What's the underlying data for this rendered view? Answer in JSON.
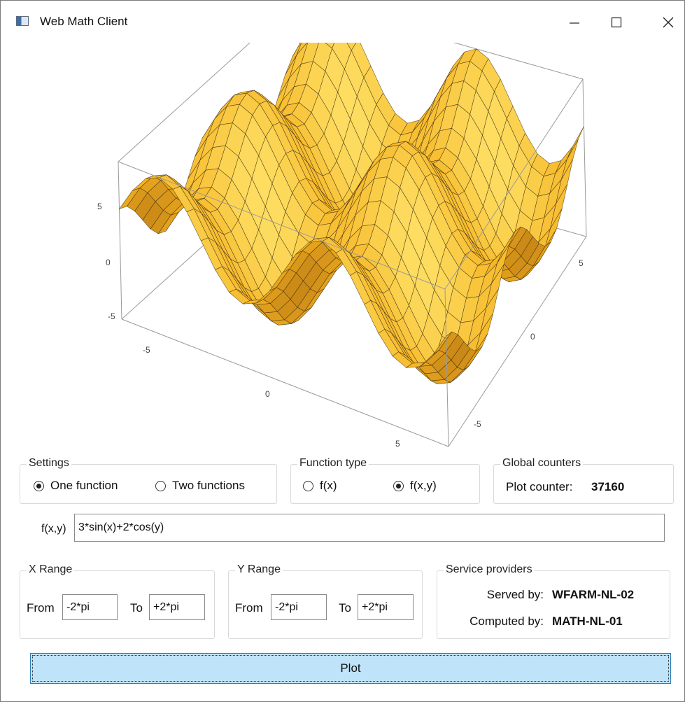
{
  "window": {
    "title": "Web Math Client"
  },
  "plot": {
    "z_ticks": [
      "5",
      "0",
      "-5"
    ],
    "x_ticks": [
      "-5",
      "0",
      "5"
    ],
    "y_ticks": [
      "-5",
      "0",
      "5"
    ]
  },
  "settings": {
    "title": "Settings",
    "option_one": "One function",
    "option_two": "Two functions",
    "selected": "one"
  },
  "function_type": {
    "title": "Function type",
    "option_fx": "f(x)",
    "option_fxy": "f(x,y)",
    "selected": "fxy"
  },
  "global_counters": {
    "title": "Global counters",
    "plot_counter_label": "Plot counter:",
    "plot_counter_value": "37160"
  },
  "function_input": {
    "label": "f(x,y)",
    "value": "3*sin(x)+2*cos(y)"
  },
  "x_range": {
    "title": "X Range",
    "from_label": "From",
    "from_value": "-2*pi",
    "to_label": "To",
    "to_value": "+2*pi"
  },
  "y_range": {
    "title": "Y Range",
    "from_label": "From",
    "from_value": "-2*pi",
    "to_label": "To",
    "to_value": "+2*pi"
  },
  "service_providers": {
    "title": "Service providers",
    "served_by_label": "Served by:",
    "served_by_value": "WFARM-NL-02",
    "computed_by_label": "Computed by:",
    "computed_by_value": "MATH-NL-01"
  },
  "plot_button": {
    "label": "Plot"
  },
  "colors": {
    "surface_light": "#ffe36a",
    "surface_mid": "#f5b321",
    "surface_dark": "#8a4a08",
    "button_bg": "#bfe3f8",
    "button_border": "#2c7cb8"
  }
}
